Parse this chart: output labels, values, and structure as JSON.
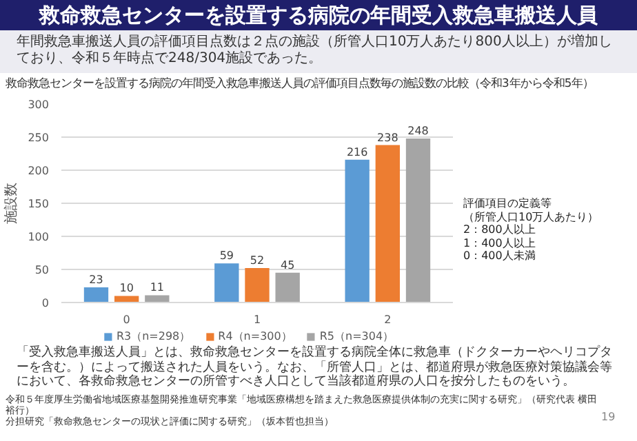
{
  "chart_data": {
    "type": "bar",
    "title": "救命救急センターを設置する病院の年間受入救急車搬送人員",
    "subtitle": "救命救急センターを設置する病院の年間受入救急車搬送人員の評価項目点数毎の施設数の比較（令和3年から令和5年）",
    "ylabel": "施設数",
    "categories": [
      "0",
      "1",
      "2"
    ],
    "series": [
      {
        "name": "R3（n=298）",
        "color": "#5b9bd5",
        "values": [
          23,
          59,
          216
        ]
      },
      {
        "name": "R4（n=300）",
        "color": "#ed7d31",
        "values": [
          10,
          52,
          238
        ]
      },
      {
        "name": "R5（n=304）",
        "color": "#a5a5a5",
        "values": [
          11,
          45,
          248
        ]
      }
    ],
    "ylim": [
      0,
      300
    ],
    "yticks": [
      0,
      50,
      100,
      150,
      200,
      250,
      300
    ],
    "grid": "y",
    "legend": "bottom",
    "data_labels": true,
    "annotations": [
      "年間救急車搬送人員の評価項目点数は２点の施設（所管人口10万人あたり800人以上）が増加しており、令和５年時点で248/304施設であった。",
      "評価項目の定義等",
      "（所管人口10万人あたり）",
      "2：800人以上",
      "1：400人以上",
      "0：400人未満",
      "「受入救急車搬送人員」とは、救命救急センターを設置する病院全体に救急車（ドクターカーやヘリコプターを含む。）によって搬送された人員をいう。なお、「所管人口」とは、都道府県が救急医療対策協議会等において、各救命救急センターの所管すべき人口として当該都道府県の人口を按分したものをいう。",
      "令和５年度厚生労働省地域医療基盤開発推進研究事業「地域医療構想を踏まえた救急医療提供体制の充実に関する研究」（研究代表 横田裕行）",
      "分担研究「救命救急センターの現状と評価に関する研究」（坂本哲也担当）",
      "19"
    ]
  }
}
